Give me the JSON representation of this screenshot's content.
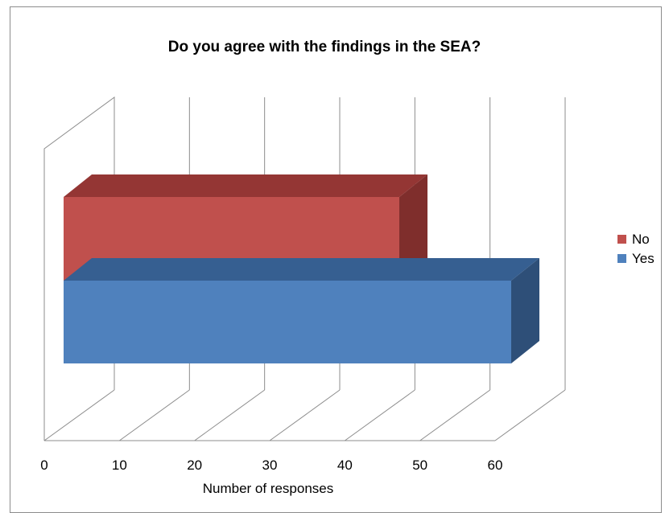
{
  "chart_data": {
    "type": "bar",
    "orientation": "horizontal",
    "style": "3d-stacked",
    "title": "Do you agree with the findings in the SEA?",
    "xlabel": "Number of responses",
    "ylabel": "",
    "xlim": [
      0,
      60
    ],
    "ticks": [
      "0",
      "10",
      "20",
      "30",
      "40",
      "50",
      "60"
    ],
    "grid": true,
    "legend_position": "right",
    "series": [
      {
        "name": "No",
        "value": 45,
        "color": "#C0504D",
        "top_color": "#943634",
        "side_color": "#7F2E2C"
      },
      {
        "name": "Yes",
        "value": 60,
        "color": "#4F81BD",
        "top_color": "#365F91",
        "side_color": "#2E4F78"
      }
    ]
  }
}
